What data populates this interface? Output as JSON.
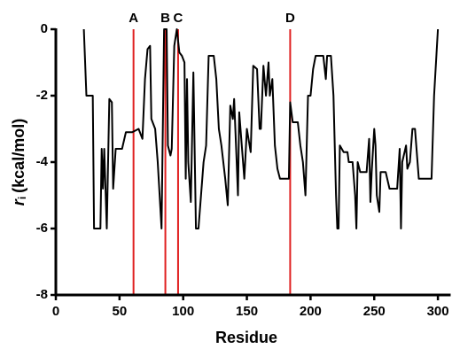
{
  "chart_data": {
    "type": "line",
    "xlabel": "Residue",
    "ylabel": {
      "symbol": "r",
      "subscript": "i",
      "unit": "(kcal/mol)"
    },
    "xlim": [
      0,
      310
    ],
    "ylim": [
      -8,
      0
    ],
    "xticks": [
      0,
      50,
      100,
      150,
      200,
      250,
      300
    ],
    "yticks": [
      -8,
      -6,
      -4,
      -2,
      0
    ],
    "markers": [
      {
        "label": "A",
        "x": 61
      },
      {
        "label": "B",
        "x": 86
      },
      {
        "label": "C",
        "x": 96
      },
      {
        "label": "D",
        "x": 184
      }
    ],
    "marker_color": "#e02020",
    "series": [
      {
        "name": null,
        "color": "#000000",
        "x": [
          22,
          24,
          29,
          30,
          35,
          36,
          37,
          38,
          40,
          42,
          44,
          45,
          47,
          52,
          55,
          60,
          65,
          68,
          70,
          72,
          74,
          75,
          78,
          80,
          83,
          85,
          87,
          88,
          90,
          91,
          93,
          95,
          97,
          99,
          101,
          102,
          103,
          104,
          106,
          108,
          110,
          112,
          114,
          116,
          118,
          120,
          124,
          126,
          128,
          130,
          133,
          135,
          137,
          139,
          140,
          142,
          143,
          144,
          146,
          148,
          150,
          153,
          155,
          158,
          160,
          161,
          163,
          165,
          167,
          168,
          170,
          172,
          174,
          176,
          183,
          184,
          186,
          190,
          192,
          194,
          196,
          198,
          200,
          202,
          204,
          210,
          212,
          213,
          216,
          218,
          220,
          221,
          222,
          223,
          226,
          229,
          230,
          233,
          235,
          236,
          237,
          239,
          244,
          246,
          247,
          248,
          250,
          251,
          252,
          254,
          255,
          259,
          262,
          268,
          270,
          271,
          272,
          275,
          276,
          278,
          280,
          282,
          285,
          295,
          297,
          300
        ],
        "values": [
          0,
          -2,
          -2,
          -6,
          -6,
          -3.6,
          -4.8,
          -3.6,
          -6,
          -2.1,
          -2.2,
          -4.8,
          -3.6,
          -3.6,
          -3.1,
          -3.1,
          -3,
          -3.3,
          -1.5,
          -0.6,
          -0.5,
          -2.7,
          -3,
          -4,
          -6,
          0,
          0,
          -3.5,
          -3.8,
          -3.6,
          -0.5,
          0,
          -0.7,
          -0.8,
          -1,
          -4.5,
          -1.5,
          -4,
          -5.2,
          -1.3,
          -6,
          -6,
          -5,
          -4,
          -3.5,
          -0.8,
          -0.8,
          -1.5,
          -3,
          -3.5,
          -4.5,
          -5.3,
          -2.3,
          -2.7,
          -2.1,
          -4,
          -5,
          -2.5,
          -3.5,
          -4.5,
          -3,
          -3.7,
          -1.1,
          -1.2,
          -3,
          -3,
          -1.1,
          -2,
          -1,
          -2,
          -1.5,
          -3.5,
          -4.2,
          -4.5,
          -4.5,
          -2.2,
          -2.8,
          -2.8,
          -3.5,
          -4,
          -5,
          -2,
          -2,
          -1.2,
          -0.8,
          -0.8,
          -1.5,
          -0.8,
          -0.8,
          -2,
          -5,
          -6,
          -6,
          -3.5,
          -3.7,
          -3.7,
          -4,
          -4,
          -5,
          -6,
          -4,
          -4.3,
          -4.3,
          -3.3,
          -5.2,
          -4.3,
          -3,
          -3.5,
          -5,
          -5.5,
          -4.3,
          -4.3,
          -4.8,
          -4.8,
          -3.6,
          -6,
          -4,
          -3.5,
          -4.2,
          -4,
          -3,
          -3,
          -4.5,
          -4.5,
          -2,
          0
        ]
      }
    ]
  }
}
